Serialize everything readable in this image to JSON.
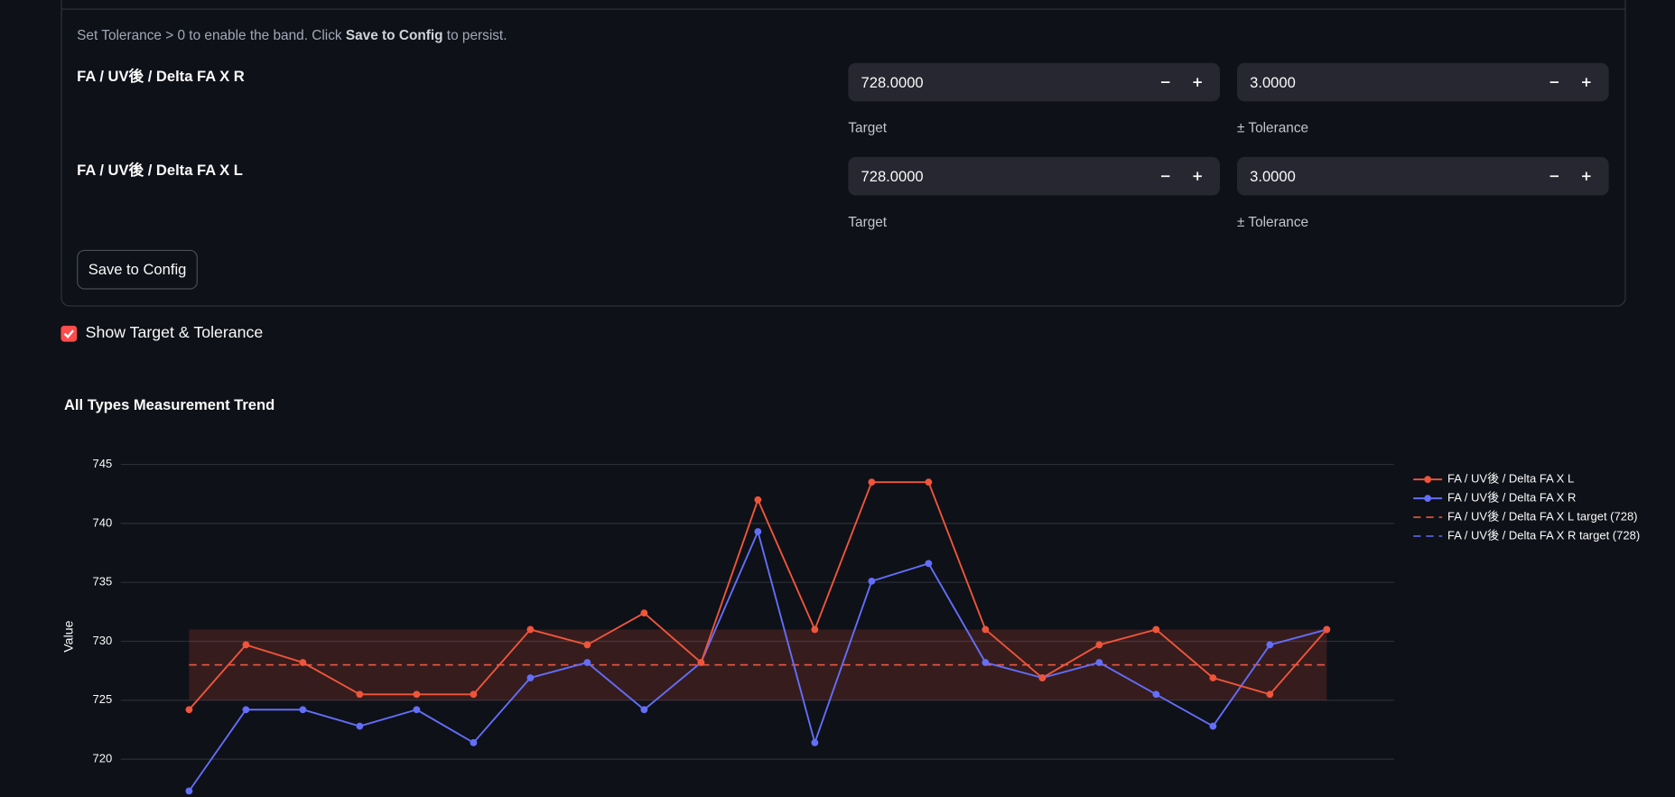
{
  "form": {
    "note": {
      "pre": "Set Tolerance > 0 to enable the band. Click ",
      "bold": "Save to Config",
      "post": " to persist."
    },
    "rows": [
      {
        "label": "FA / UV後 / Delta FA X R",
        "target": "728.0000",
        "target_caption": "Target",
        "tolerance": "3.0000",
        "tolerance_caption": "± Tolerance"
      },
      {
        "label": "FA / UV後 / Delta FA X L",
        "target": "728.0000",
        "target_caption": "Target",
        "tolerance": "3.0000",
        "tolerance_caption": "± Tolerance"
      }
    ],
    "button": "Save to Config",
    "checkbox": "Show Target & Tolerance"
  },
  "chart_data": {
    "type": "line",
    "title": "All Types Measurement Trend",
    "y_label": "Value",
    "categories": [
      null,
      null,
      null,
      null,
      null,
      null,
      null,
      null,
      null,
      null,
      null,
      null,
      null,
      null,
      null,
      null,
      null,
      null,
      null,
      null,
      null
    ],
    "series": [
      {
        "name": "FA / UV後 / Delta FA X L",
        "color": "#ef553b",
        "values": [
          724.2,
          729.7,
          728.2,
          725.5,
          725.5,
          725.5,
          731.0,
          729.7,
          732.4,
          728.2,
          742.0,
          731.0,
          743.5,
          743.5,
          731.0,
          726.9,
          729.7,
          731.0,
          726.9,
          725.5,
          731.0
        ]
      },
      {
        "name": "FA / UV後 / Delta FA X R",
        "color": "#636efa",
        "values": [
          717.3,
          724.2,
          724.2,
          722.8,
          724.2,
          721.4,
          726.9,
          728.2,
          724.2,
          728.2,
          739.3,
          721.4,
          735.1,
          736.6,
          728.2,
          726.9,
          728.2,
          725.5,
          722.8,
          729.7,
          731.0
        ]
      }
    ],
    "targets": [
      {
        "name": "FA / UV後 / Delta FA X L target (728)",
        "color": "#ef553b",
        "value": 728
      },
      {
        "name": "FA / UV後 / Delta FA X R target (728)",
        "color": "#636efa",
        "value": 728
      }
    ],
    "tolerance": 3,
    "band_color": "rgba(239,85,59,0.18)",
    "ylim": [
      716.8,
      746.4
    ],
    "yticks": [
      720,
      725,
      730,
      735,
      740,
      745
    ],
    "grid": true,
    "legend": "right"
  }
}
